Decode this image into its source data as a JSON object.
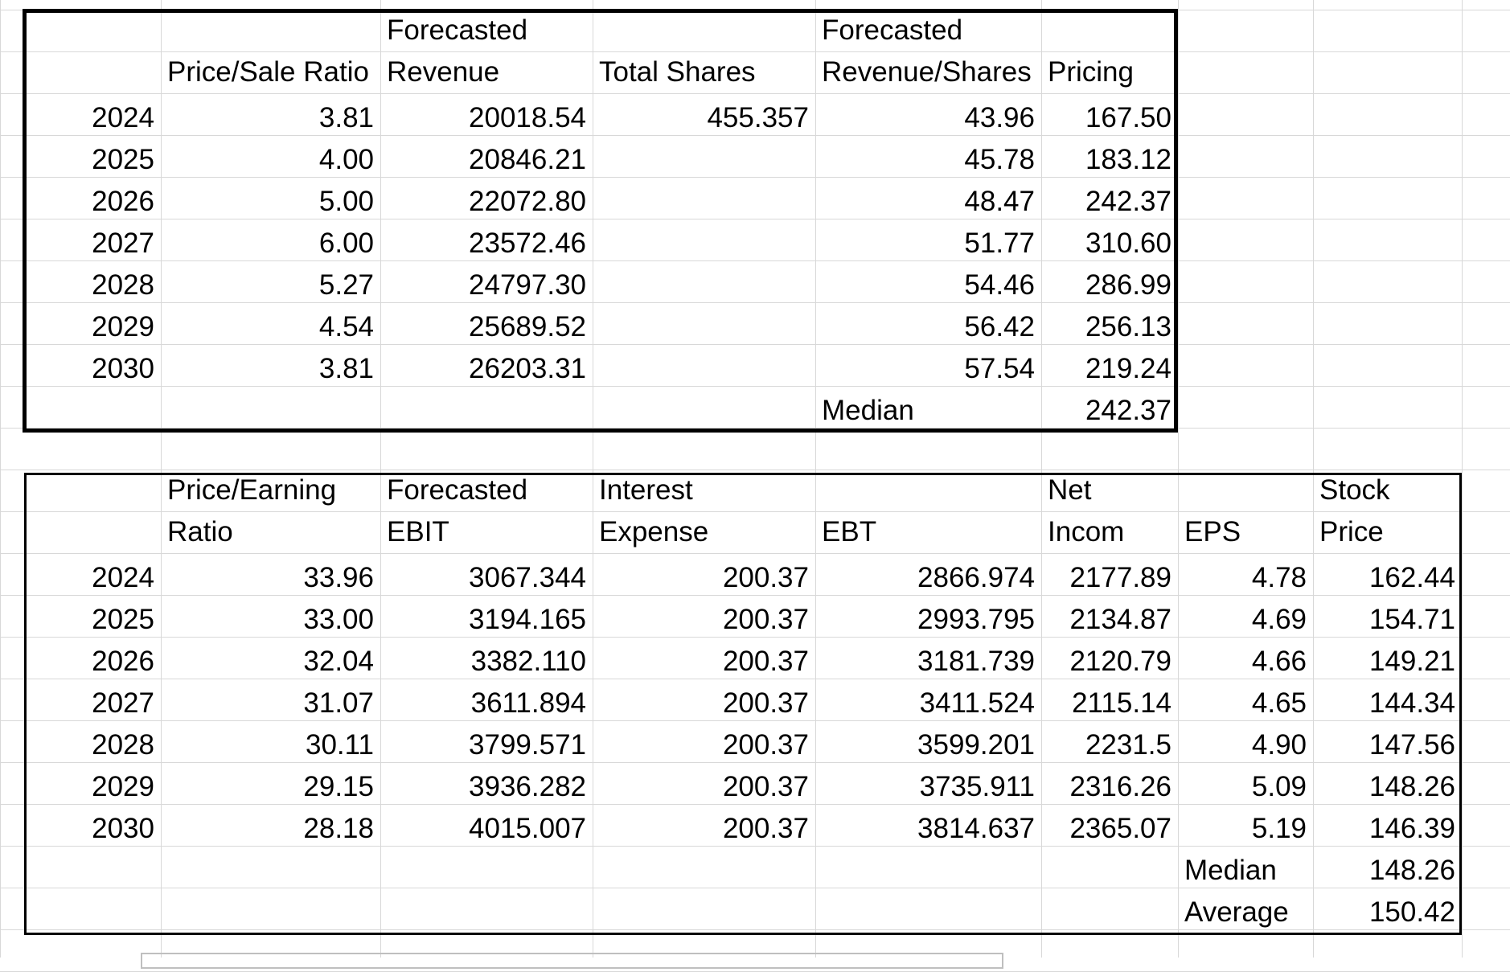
{
  "colors": {
    "gridline": "#d8d8d8",
    "border": "#000000",
    "text": "#000000"
  },
  "table_price_sales": {
    "headers": [
      "",
      "Price/Sale Ratio",
      "Forecasted Revenue",
      "Total Shares",
      "Forecasted Revenue/Shares",
      "Pricing"
    ],
    "rows": [
      [
        "2024",
        "3.81",
        "20018.54",
        "455.357",
        "43.96",
        "167.50"
      ],
      [
        "2025",
        "4.00",
        "20846.21",
        "",
        "45.78",
        "183.12"
      ],
      [
        "2026",
        "5.00",
        "22072.80",
        "",
        "48.47",
        "242.37"
      ],
      [
        "2027",
        "6.00",
        "23572.46",
        "",
        "51.77",
        "310.60"
      ],
      [
        "2028",
        "5.27",
        "24797.30",
        "",
        "54.46",
        "286.99"
      ],
      [
        "2029",
        "4.54",
        "25689.52",
        "",
        "56.42",
        "256.13"
      ],
      [
        "2030",
        "3.81",
        "26203.31",
        "",
        "57.54",
        "219.24"
      ]
    ],
    "median_label": "Median",
    "median_value": "242.37"
  },
  "table_price_earnings": {
    "headers": [
      "",
      "Price/Earning Ratio",
      "Forecasted EBIT",
      "Interest Expense",
      "EBT",
      "Net Incom",
      "EPS",
      "Stock Price"
    ],
    "rows": [
      [
        "2024",
        "33.96",
        "3067.344",
        "200.37",
        "2866.974",
        "2177.89",
        "4.78",
        "162.44"
      ],
      [
        "2025",
        "33.00",
        "3194.165",
        "200.37",
        "2993.795",
        "2134.87",
        "4.69",
        "154.71"
      ],
      [
        "2026",
        "32.04",
        "3382.110",
        "200.37",
        "3181.739",
        "2120.79",
        "4.66",
        "149.21"
      ],
      [
        "2027",
        "31.07",
        "3611.894",
        "200.37",
        "3411.524",
        "2115.14",
        "4.65",
        "144.34"
      ],
      [
        "2028",
        "30.11",
        "3799.571",
        "200.37",
        "3599.201",
        "2231.5",
        "4.90",
        "147.56"
      ],
      [
        "2029",
        "29.15",
        "3936.282",
        "200.37",
        "3735.911",
        "2316.26",
        "5.09",
        "148.26"
      ],
      [
        "2030",
        "28.18",
        "4015.007",
        "200.37",
        "3814.637",
        "2365.07",
        "5.19",
        "146.39"
      ]
    ],
    "median_label": "Median",
    "median_value": "148.26",
    "average_label": "Average",
    "average_value": "150.42"
  }
}
